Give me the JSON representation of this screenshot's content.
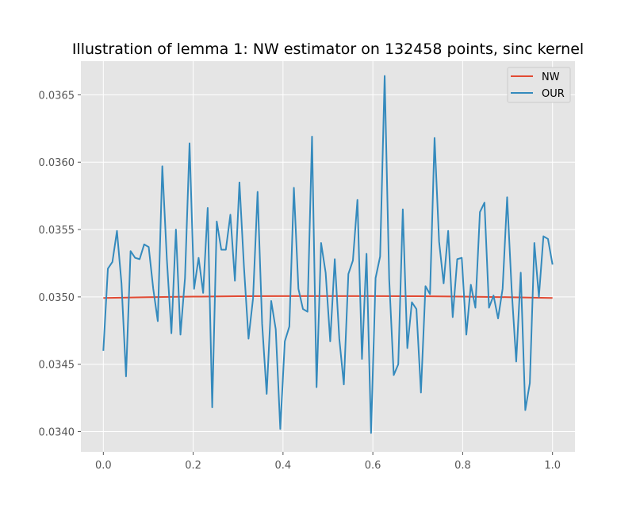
{
  "chart_data": {
    "type": "line",
    "title": "Illustration of lemma 1: NW estimator on 132458 points, sinc kernel",
    "xlabel": "",
    "ylabel": "",
    "xlim": [
      -0.05,
      1.05
    ],
    "ylim": [
      0.03385,
      0.03675
    ],
    "xticks": [
      0.0,
      0.2,
      0.4,
      0.6,
      0.8,
      1.0
    ],
    "xtick_labels": [
      "0.0",
      "0.2",
      "0.4",
      "0.6",
      "0.8",
      "1.0"
    ],
    "yticks": [
      0.034,
      0.0345,
      0.035,
      0.0355,
      0.036,
      0.0365
    ],
    "ytick_labels": [
      "0.0340",
      "0.0345",
      "0.0350",
      "0.0355",
      "0.0360",
      "0.0365"
    ],
    "grid": true,
    "legend_position": "top-right",
    "series": [
      {
        "name": "NW",
        "color": "#E24A33",
        "x": [
          0.0,
          0.1,
          0.2,
          0.3,
          0.4,
          0.5,
          0.6,
          0.7,
          0.8,
          0.9,
          1.0
        ],
        "y": [
          0.034992,
          0.034998,
          0.035002,
          0.035005,
          0.035006,
          0.035006,
          0.035006,
          0.035005,
          0.035002,
          0.034998,
          0.034992
        ]
      },
      {
        "name": "OUR",
        "color": "#348ABD",
        "x": [
          0.0,
          0.0101,
          0.0202,
          0.0303,
          0.0404,
          0.0505,
          0.0606,
          0.0707,
          0.0808,
          0.0909,
          0.101,
          0.1111,
          0.1212,
          0.1313,
          0.1414,
          0.1515,
          0.1616,
          0.1717,
          0.1818,
          0.1919,
          0.202,
          0.2121,
          0.2222,
          0.2323,
          0.2424,
          0.2525,
          0.2626,
          0.2727,
          0.2828,
          0.2929,
          0.303,
          0.3131,
          0.3232,
          0.3333,
          0.3434,
          0.3535,
          0.3636,
          0.3737,
          0.3838,
          0.3939,
          0.404,
          0.4141,
          0.4242,
          0.4343,
          0.4444,
          0.4545,
          0.4646,
          0.4747,
          0.4848,
          0.4949,
          0.5051,
          0.5152,
          0.5253,
          0.5354,
          0.5455,
          0.5556,
          0.5657,
          0.5758,
          0.5859,
          0.596,
          0.6061,
          0.6162,
          0.6263,
          0.6364,
          0.6465,
          0.6566,
          0.6667,
          0.6768,
          0.6869,
          0.697,
          0.7071,
          0.7172,
          0.7273,
          0.7374,
          0.7475,
          0.7576,
          0.7677,
          0.7778,
          0.7879,
          0.798,
          0.8081,
          0.8182,
          0.8283,
          0.8384,
          0.8485,
          0.8586,
          0.8687,
          0.8788,
          0.8889,
          0.899,
          0.9091,
          0.9192,
          0.9293,
          0.9394,
          0.9495,
          0.9596,
          0.9697,
          0.9798,
          0.9899,
          1.0
        ],
        "y": [
          0.0346,
          0.03521,
          0.03526,
          0.03549,
          0.0351,
          0.03441,
          0.03534,
          0.03529,
          0.03528,
          0.03539,
          0.03537,
          0.03506,
          0.03482,
          0.03597,
          0.03528,
          0.03473,
          0.0355,
          0.03472,
          0.03514,
          0.03614,
          0.03506,
          0.03529,
          0.03503,
          0.03566,
          0.03418,
          0.03556,
          0.03535,
          0.03535,
          0.03561,
          0.03512,
          0.03585,
          0.03522,
          0.03469,
          0.03499,
          0.03578,
          0.0348,
          0.03428,
          0.03497,
          0.03476,
          0.03402,
          0.03467,
          0.03478,
          0.03581,
          0.03506,
          0.03491,
          0.03489,
          0.03619,
          0.03433,
          0.0354,
          0.03518,
          0.03467,
          0.03528,
          0.03469,
          0.03435,
          0.03517,
          0.03527,
          0.03572,
          0.03454,
          0.03532,
          0.03399,
          0.03514,
          0.0353,
          0.03664,
          0.03513,
          0.03442,
          0.0345,
          0.03565,
          0.03462,
          0.03496,
          0.03491,
          0.03429,
          0.03508,
          0.03502,
          0.03618,
          0.03541,
          0.0351,
          0.03549,
          0.03485,
          0.03528,
          0.03529,
          0.03472,
          0.03509,
          0.03492,
          0.03563,
          0.0357,
          0.03492,
          0.03501,
          0.03484,
          0.03506,
          0.03574,
          0.03505,
          0.03452,
          0.03518,
          0.03416,
          0.03436,
          0.0354,
          0.035,
          0.03545,
          0.03543,
          0.03524
        ]
      }
    ]
  }
}
